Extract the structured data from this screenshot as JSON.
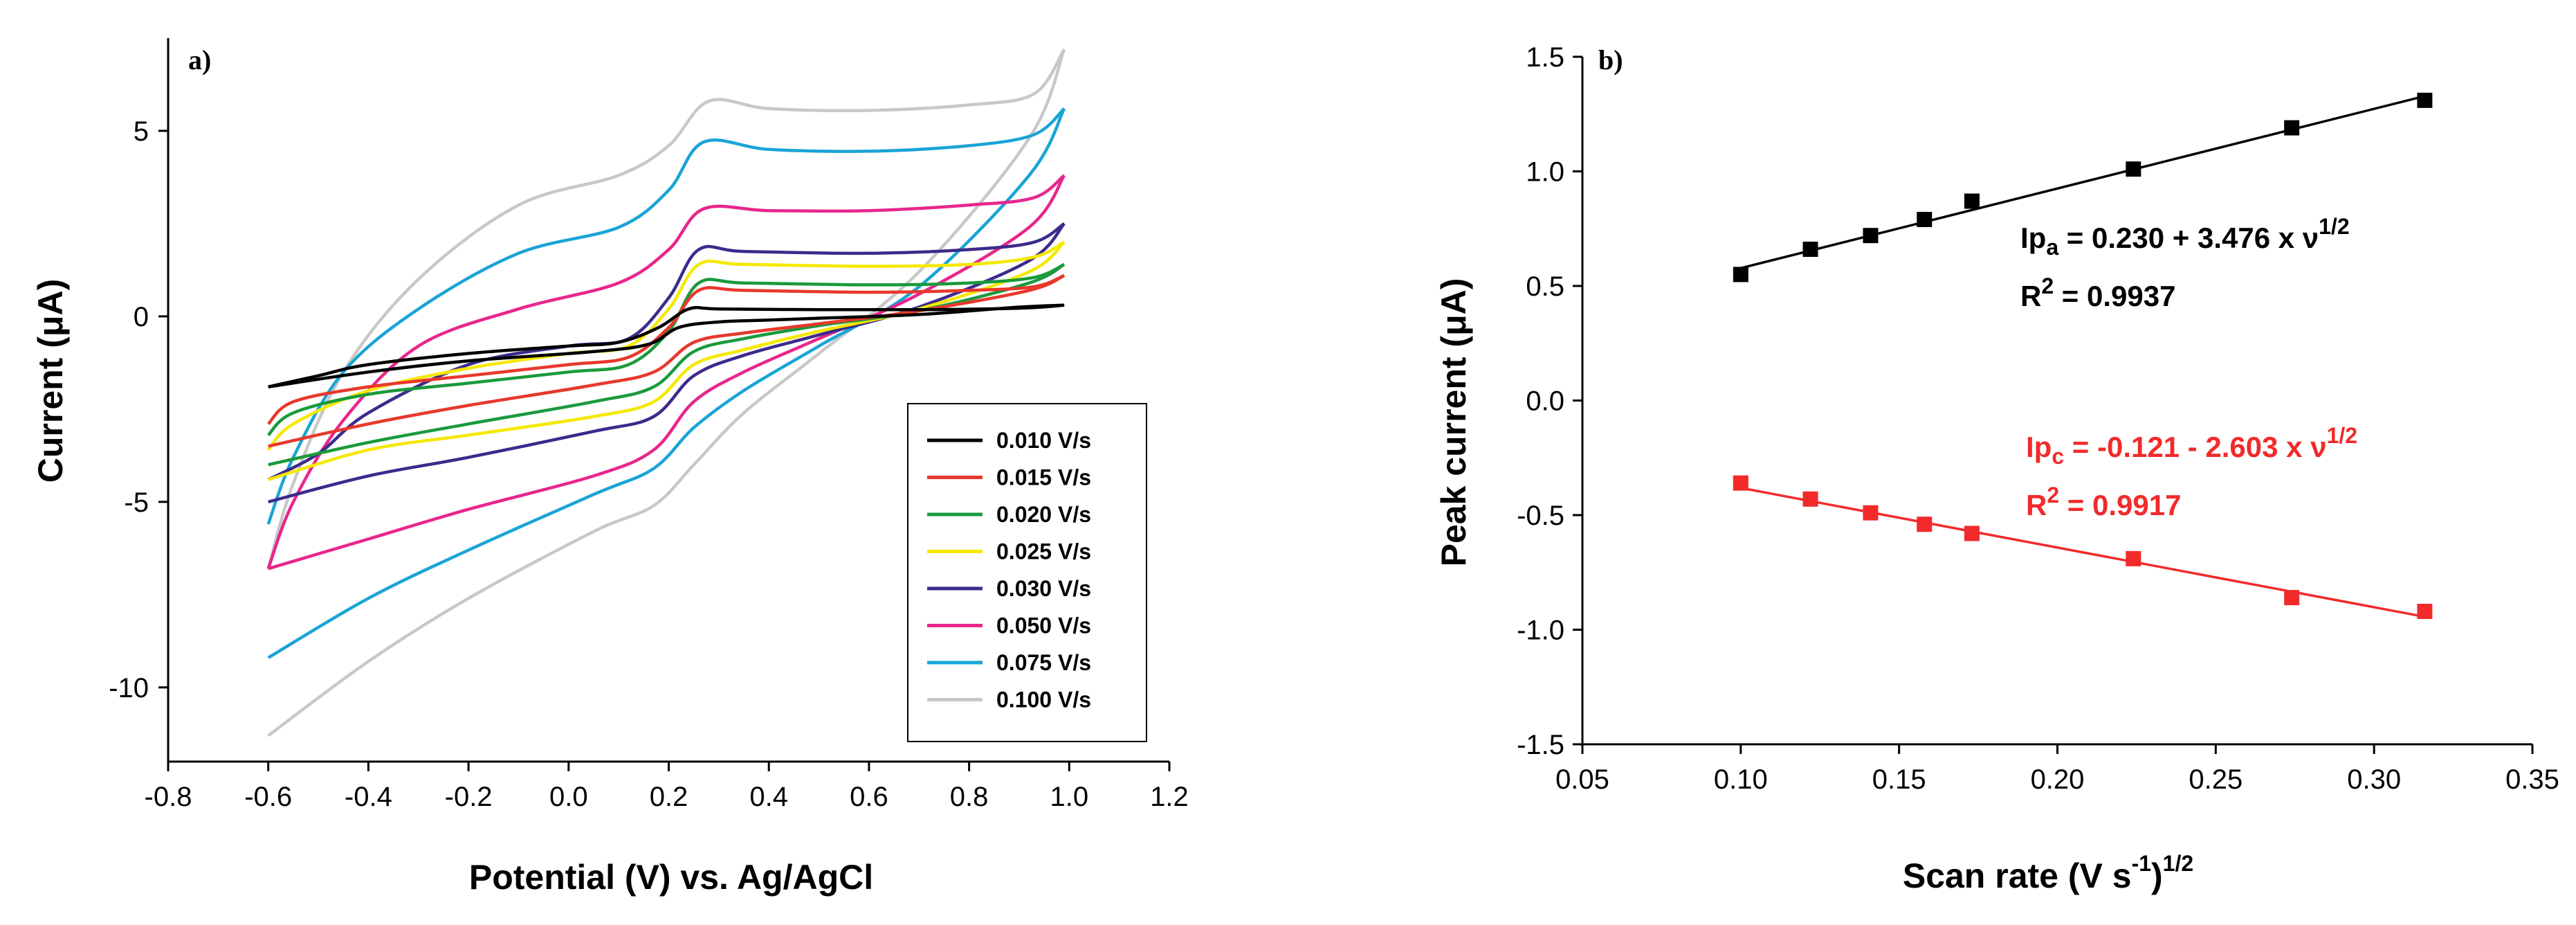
{
  "chart_data": [
    {
      "type": "line",
      "panel_label": "a)",
      "xlabel": "Potential (V) vs. Ag/AgCl",
      "ylabel": "Current (μA)",
      "xlim": [
        -0.8,
        1.2
      ],
      "ylim": [
        -12,
        7.5
      ],
      "xticks": [
        -0.8,
        -0.6,
        -0.4,
        -0.2,
        0.0,
        0.2,
        0.4,
        0.6,
        0.8,
        1.0,
        1.2
      ],
      "xtick_labels": [
        "-0.8",
        "-0.6",
        "-0.4",
        "-0.2",
        "0.0",
        "0.2",
        "0.4",
        "0.6",
        "0.8",
        "1.0",
        "1.2"
      ],
      "yticks": [
        -10,
        -5,
        0,
        5
      ],
      "ytick_labels": [
        "-10",
        "-5",
        "0",
        "5"
      ],
      "legend_position": "lower-right",
      "series": [
        {
          "name": "0.010 V/s",
          "color": "#000000",
          "forward": [
            [
              -0.6,
              -1.9
            ],
            [
              -0.5,
              -1.6
            ],
            [
              -0.4,
              -1.3
            ],
            [
              -0.2,
              -1.0
            ],
            [
              0.0,
              -0.8
            ],
            [
              0.1,
              -0.7
            ],
            [
              0.18,
              -0.3
            ],
            [
              0.24,
              0.2
            ],
            [
              0.3,
              0.2
            ],
            [
              0.5,
              0.18
            ],
            [
              0.7,
              0.18
            ],
            [
              0.9,
              0.22
            ],
            [
              0.99,
              0.3
            ]
          ],
          "reverse": [
            [
              0.99,
              0.3
            ],
            [
              0.9,
              0.25
            ],
            [
              0.7,
              0.05
            ],
            [
              0.5,
              -0.05
            ],
            [
              0.4,
              -0.1
            ],
            [
              0.3,
              -0.15
            ],
            [
              0.22,
              -0.3
            ],
            [
              0.16,
              -0.75
            ],
            [
              0.05,
              -0.95
            ],
            [
              -0.2,
              -1.2
            ],
            [
              -0.4,
              -1.5
            ],
            [
              -0.6,
              -1.9
            ]
          ]
        },
        {
          "name": "0.015 V/s",
          "color": "#e8382c",
          "forward": [
            [
              -0.6,
              -2.9
            ],
            [
              -0.55,
              -2.3
            ],
            [
              -0.4,
              -1.9
            ],
            [
              -0.2,
              -1.6
            ],
            [
              0.0,
              -1.3
            ],
            [
              0.12,
              -1.1
            ],
            [
              0.2,
              -0.3
            ],
            [
              0.26,
              0.7
            ],
            [
              0.35,
              0.7
            ],
            [
              0.6,
              0.65
            ],
            [
              0.8,
              0.7
            ],
            [
              0.93,
              0.8
            ],
            [
              0.99,
              1.1
            ]
          ],
          "reverse": [
            [
              0.99,
              1.1
            ],
            [
              0.92,
              0.7
            ],
            [
              0.7,
              0.15
            ],
            [
              0.5,
              -0.2
            ],
            [
              0.35,
              -0.45
            ],
            [
              0.25,
              -0.7
            ],
            [
              0.17,
              -1.5
            ],
            [
              0.05,
              -1.85
            ],
            [
              -0.2,
              -2.4
            ],
            [
              -0.4,
              -2.9
            ],
            [
              -0.6,
              -3.5
            ]
          ]
        },
        {
          "name": "0.020 V/s",
          "color": "#1a9a3c",
          "forward": [
            [
              -0.6,
              -3.2
            ],
            [
              -0.55,
              -2.6
            ],
            [
              -0.4,
              -2.1
            ],
            [
              -0.2,
              -1.8
            ],
            [
              0.0,
              -1.5
            ],
            [
              0.12,
              -1.3
            ],
            [
              0.2,
              -0.4
            ],
            [
              0.26,
              0.9
            ],
            [
              0.35,
              0.9
            ],
            [
              0.6,
              0.85
            ],
            [
              0.8,
              0.9
            ],
            [
              0.93,
              1.05
            ],
            [
              0.99,
              1.4
            ]
          ],
          "reverse": [
            [
              0.99,
              1.4
            ],
            [
              0.92,
              0.9
            ],
            [
              0.7,
              0.15
            ],
            [
              0.5,
              -0.25
            ],
            [
              0.35,
              -0.6
            ],
            [
              0.25,
              -0.95
            ],
            [
              0.17,
              -1.9
            ],
            [
              0.05,
              -2.3
            ],
            [
              -0.2,
              -2.9
            ],
            [
              -0.4,
              -3.4
            ],
            [
              -0.6,
              -4.0
            ]
          ]
        },
        {
          "name": "0.025 V/s",
          "color": "#f5e800",
          "forward": [
            [
              -0.6,
              -3.6
            ],
            [
              -0.55,
              -2.9
            ],
            [
              -0.4,
              -2.0
            ],
            [
              -0.2,
              -1.4
            ],
            [
              0.0,
              -1.0
            ],
            [
              0.12,
              -0.8
            ],
            [
              0.2,
              0.2
            ],
            [
              0.26,
              1.4
            ],
            [
              0.35,
              1.4
            ],
            [
              0.6,
              1.35
            ],
            [
              0.8,
              1.4
            ],
            [
              0.93,
              1.6
            ],
            [
              0.99,
              2.0
            ]
          ],
          "reverse": [
            [
              0.99,
              2.0
            ],
            [
              0.92,
              1.2
            ],
            [
              0.7,
              0.2
            ],
            [
              0.5,
              -0.4
            ],
            [
              0.35,
              -0.9
            ],
            [
              0.25,
              -1.3
            ],
            [
              0.17,
              -2.3
            ],
            [
              0.05,
              -2.7
            ],
            [
              -0.2,
              -3.2
            ],
            [
              -0.4,
              -3.6
            ],
            [
              -0.6,
              -4.4
            ]
          ]
        },
        {
          "name": "0.030 V/s",
          "color": "#3d2a8c",
          "forward": [
            [
              -0.6,
              -4.4
            ],
            [
              -0.5,
              -3.7
            ],
            [
              -0.4,
              -2.6
            ],
            [
              -0.2,
              -1.3
            ],
            [
              0.0,
              -0.8
            ],
            [
              0.12,
              -0.6
            ],
            [
              0.2,
              0.5
            ],
            [
              0.26,
              1.8
            ],
            [
              0.35,
              1.75
            ],
            [
              0.6,
              1.7
            ],
            [
              0.8,
              1.8
            ],
            [
              0.93,
              2.0
            ],
            [
              0.99,
              2.5
            ]
          ],
          "reverse": [
            [
              0.99,
              2.5
            ],
            [
              0.92,
              1.5
            ],
            [
              0.7,
              0.25
            ],
            [
              0.5,
              -0.5
            ],
            [
              0.35,
              -1.05
            ],
            [
              0.25,
              -1.6
            ],
            [
              0.17,
              -2.7
            ],
            [
              0.05,
              -3.1
            ],
            [
              -0.2,
              -3.8
            ],
            [
              -0.4,
              -4.3
            ],
            [
              -0.6,
              -5.0
            ]
          ]
        },
        {
          "name": "0.050 V/s",
          "color": "#e8268c",
          "forward": [
            [
              -0.6,
              -6.8
            ],
            [
              -0.55,
              -5.0
            ],
            [
              -0.45,
              -2.8
            ],
            [
              -0.3,
              -0.8
            ],
            [
              -0.1,
              0.2
            ],
            [
              0.1,
              0.9
            ],
            [
              0.2,
              1.8
            ],
            [
              0.27,
              2.9
            ],
            [
              0.4,
              2.85
            ],
            [
              0.6,
              2.85
            ],
            [
              0.8,
              3.0
            ],
            [
              0.93,
              3.2
            ],
            [
              0.99,
              3.8
            ]
          ],
          "reverse": [
            [
              0.99,
              3.8
            ],
            [
              0.92,
              2.4
            ],
            [
              0.7,
              0.6
            ],
            [
              0.5,
              -0.6
            ],
            [
              0.35,
              -1.5
            ],
            [
              0.25,
              -2.3
            ],
            [
              0.17,
              -3.6
            ],
            [
              0.05,
              -4.3
            ],
            [
              -0.2,
              -5.2
            ],
            [
              -0.4,
              -6.0
            ],
            [
              -0.6,
              -6.8
            ]
          ]
        },
        {
          "name": "0.075 V/s",
          "color": "#1aa4d6",
          "forward": [
            [
              -0.6,
              -5.6
            ],
            [
              -0.55,
              -3.8
            ],
            [
              -0.45,
              -1.5
            ],
            [
              -0.3,
              0.2
            ],
            [
              -0.1,
              1.7
            ],
            [
              0.1,
              2.4
            ],
            [
              0.2,
              3.4
            ],
            [
              0.27,
              4.7
            ],
            [
              0.4,
              4.5
            ],
            [
              0.6,
              4.45
            ],
            [
              0.8,
              4.6
            ],
            [
              0.93,
              4.9
            ],
            [
              0.99,
              5.6
            ]
          ],
          "reverse": [
            [
              0.99,
              5.6
            ],
            [
              0.92,
              3.8
            ],
            [
              0.7,
              0.8
            ],
            [
              0.5,
              -0.8
            ],
            [
              0.35,
              -2.0
            ],
            [
              0.25,
              -3.0
            ],
            [
              0.17,
              -4.1
            ],
            [
              0.05,
              -4.8
            ],
            [
              -0.2,
              -6.3
            ],
            [
              -0.4,
              -7.6
            ],
            [
              -0.6,
              -9.2
            ]
          ]
        },
        {
          "name": "0.100 V/s",
          "color": "#c8c8c8",
          "forward": [
            [
              -0.6,
              -6.8
            ],
            [
              -0.55,
              -4.5
            ],
            [
              -0.45,
              -1.5
            ],
            [
              -0.3,
              1.0
            ],
            [
              -0.1,
              3.0
            ],
            [
              0.1,
              3.8
            ],
            [
              0.2,
              4.6
            ],
            [
              0.28,
              5.8
            ],
            [
              0.4,
              5.6
            ],
            [
              0.6,
              5.55
            ],
            [
              0.8,
              5.7
            ],
            [
              0.93,
              6.0
            ],
            [
              0.99,
              7.2
            ]
          ],
          "reverse": [
            [
              0.99,
              7.2
            ],
            [
              0.92,
              4.8
            ],
            [
              0.7,
              1.2
            ],
            [
              0.5,
              -1.0
            ],
            [
              0.35,
              -2.6
            ],
            [
              0.25,
              -4.0
            ],
            [
              0.17,
              -5.1
            ],
            [
              0.05,
              -5.8
            ],
            [
              -0.2,
              -7.6
            ],
            [
              -0.4,
              -9.3
            ],
            [
              -0.6,
              -11.3
            ]
          ]
        }
      ]
    },
    {
      "type": "scatter",
      "panel_label": "b)",
      "xlabel": "Scan rate (V s",
      "xlabel_sup1": "-1",
      "xlabel_close": ")",
      "xlabel_sup2": "1/2",
      "ylabel": "Peak current (μA)",
      "xlim": [
        0.05,
        0.35
      ],
      "ylim": [
        -1.5,
        1.5
      ],
      "xticks": [
        0.05,
        0.1,
        0.15,
        0.2,
        0.25,
        0.3,
        0.35
      ],
      "xtick_labels": [
        "0.05",
        "0.10",
        "0.15",
        "0.20",
        "0.25",
        "0.30",
        "0.35"
      ],
      "yticks": [
        -1.5,
        -1.0,
        -0.5,
        0.0,
        0.5,
        1.0,
        1.5
      ],
      "ytick_labels": [
        "-1.5",
        "-1.0",
        "-0.5",
        "0.0",
        "0.5",
        "1.0",
        "1.5"
      ],
      "series": [
        {
          "name": "Ipa",
          "color": "#000000",
          "x": [
            0.1,
            0.122,
            0.141,
            0.158,
            0.173,
            0.224,
            0.274,
            0.316
          ],
          "y": [
            0.55,
            0.66,
            0.72,
            0.79,
            0.87,
            1.01,
            1.19,
            1.31
          ],
          "fit": {
            "intercept": 0.23,
            "slope": 3.476
          },
          "eq_label": "Ip",
          "eq_sub": "a",
          "eq_text": " = 0.230 + 3.476 x ν",
          "eq_sup": "1/2",
          "r2_prefix": "R",
          "r2_sup": "2",
          "r2_value": " = 0.9937"
        },
        {
          "name": "Ipc",
          "color": "#f22a2a",
          "x": [
            0.1,
            0.122,
            0.141,
            0.158,
            0.173,
            0.224,
            0.274,
            0.316
          ],
          "y": [
            -0.36,
            -0.43,
            -0.49,
            -0.54,
            -0.58,
            -0.69,
            -0.86,
            -0.92
          ],
          "fit": {
            "intercept": -0.121,
            "slope": -2.603
          },
          "eq_label": "Ip",
          "eq_sub": "c",
          "eq_text": " = -0.121 - 2.603 x ν",
          "eq_sup": "1/2",
          "r2_prefix": "R",
          "r2_sup": "2",
          "r2_value": " = 0.9917"
        }
      ]
    }
  ]
}
